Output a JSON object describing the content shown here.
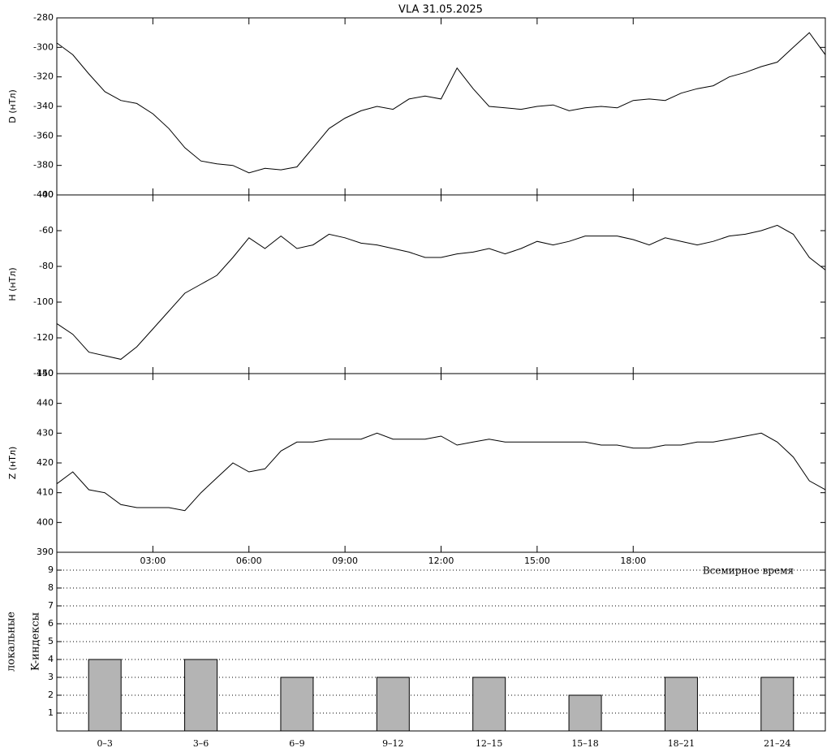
{
  "chart_data": [
    {
      "type": "line",
      "title": "VLA   31.05.2025",
      "y_label": "D (нТл)",
      "color": "#000000",
      "xlim": [
        0,
        24
      ],
      "ylim": [
        -400,
        -280
      ],
      "yticks": [
        -280,
        -300,
        -320,
        -340,
        -360,
        -380,
        -400
      ],
      "x": [
        0,
        0.5,
        1,
        1.5,
        2,
        2.5,
        3,
        3.5,
        4,
        4.5,
        5,
        5.5,
        6,
        6.5,
        7,
        7.5,
        8,
        8.5,
        9,
        9.5,
        10,
        10.5,
        11,
        11.5,
        12,
        12.5,
        13,
        13.5,
        14,
        14.5,
        15,
        15.5,
        16,
        16.5,
        17,
        17.5,
        18,
        18.5,
        19,
        19.5,
        20,
        20.5,
        21,
        21.5,
        22,
        22.5,
        23,
        23.5,
        24
      ],
      "values": [
        -297,
        -305,
        -318,
        -330,
        -336,
        -338,
        -345,
        -355,
        -368,
        -377,
        -379,
        -380,
        -385,
        -382,
        -383,
        -381,
        -368,
        -355,
        -348,
        -343,
        -340,
        -342,
        -335,
        -333,
        -335,
        -314,
        -328,
        -340,
        -341,
        -342,
        -340,
        -339,
        -343,
        -341,
        -340,
        -341,
        -336,
        -335,
        -336,
        -331,
        -328,
        -326,
        -320,
        -317,
        -313,
        -310,
        -300,
        -290,
        -305
      ]
    },
    {
      "type": "line",
      "y_label": "H (нТл)",
      "color": "#000000",
      "xlim": [
        0,
        24
      ],
      "ylim": [
        -140,
        -40
      ],
      "yticks": [
        -40,
        -60,
        -80,
        -100,
        -120,
        -140
      ],
      "x": [
        0,
        0.5,
        1,
        1.5,
        2,
        2.5,
        3,
        3.5,
        4,
        4.5,
        5,
        5.5,
        6,
        6.5,
        7,
        7.5,
        8,
        8.5,
        9,
        9.5,
        10,
        10.5,
        11,
        11.5,
        12,
        12.5,
        13,
        13.5,
        14,
        14.5,
        15,
        15.5,
        16,
        16.5,
        17,
        17.5,
        18,
        18.5,
        19,
        19.5,
        20,
        20.5,
        21,
        21.5,
        22,
        22.5,
        23,
        23.5,
        24
      ],
      "values": [
        -112,
        -118,
        -128,
        -130,
        -132,
        -125,
        -115,
        -105,
        -95,
        -90,
        -85,
        -75,
        -64,
        -70,
        -63,
        -70,
        -68,
        -62,
        -64,
        -67,
        -68,
        -70,
        -72,
        -75,
        -75,
        -73,
        -72,
        -70,
        -73,
        -70,
        -66,
        -68,
        -66,
        -63,
        -63,
        -63,
        -65,
        -68,
        -64,
        -66,
        -68,
        -66,
        -63,
        -62,
        -60,
        -57,
        -62,
        -75,
        -82
      ]
    },
    {
      "type": "line",
      "y_label": "Z (нТл)",
      "x_label": "Всемирное время",
      "color": "#000000",
      "xlim": [
        0,
        24
      ],
      "ylim": [
        390,
        450
      ],
      "yticks": [
        390,
        400,
        410,
        420,
        430,
        440,
        450
      ],
      "xticks": [
        {
          "value": 3,
          "label": "03:00"
        },
        {
          "value": 6,
          "label": "06:00"
        },
        {
          "value": 9,
          "label": "09:00"
        },
        {
          "value": 12,
          "label": "12:00"
        },
        {
          "value": 15,
          "label": "15:00"
        },
        {
          "value": 18,
          "label": "18:00"
        }
      ],
      "x": [
        0,
        0.5,
        1,
        1.5,
        2,
        2.5,
        3,
        3.5,
        4,
        4.5,
        5,
        5.5,
        6,
        6.5,
        7,
        7.5,
        8,
        8.5,
        9,
        9.5,
        10,
        10.5,
        11,
        11.5,
        12,
        12.5,
        13,
        13.5,
        14,
        14.5,
        15,
        15.5,
        16,
        16.5,
        17,
        17.5,
        18,
        18.5,
        19,
        19.5,
        20,
        20.5,
        21,
        21.5,
        22,
        22.5,
        23,
        23.5,
        24
      ],
      "values": [
        413,
        417,
        411,
        410,
        406,
        405,
        405,
        405,
        404,
        410,
        415,
        420,
        417,
        418,
        424,
        427,
        427,
        428,
        428,
        428,
        430,
        428,
        428,
        428,
        429,
        426,
        427,
        428,
        427,
        427,
        427,
        427,
        427,
        427,
        426,
        426,
        425,
        425,
        426,
        426,
        427,
        427,
        428,
        429,
        430,
        427,
        422,
        414,
        411
      ]
    },
    {
      "type": "bar",
      "y_label": [
        "локальные",
        "K-индексы"
      ],
      "color": "#b4b4b4",
      "grid": true,
      "ylim": [
        0,
        10
      ],
      "yticks": [
        1,
        2,
        3,
        4,
        5,
        6,
        7,
        8,
        9
      ],
      "categories": [
        "0–3",
        "3–6",
        "6–9",
        "9–12",
        "12–15",
        "15–18",
        "18–21",
        "21–24"
      ],
      "values": [
        4,
        4,
        3,
        3,
        3,
        2,
        3,
        3
      ]
    }
  ]
}
